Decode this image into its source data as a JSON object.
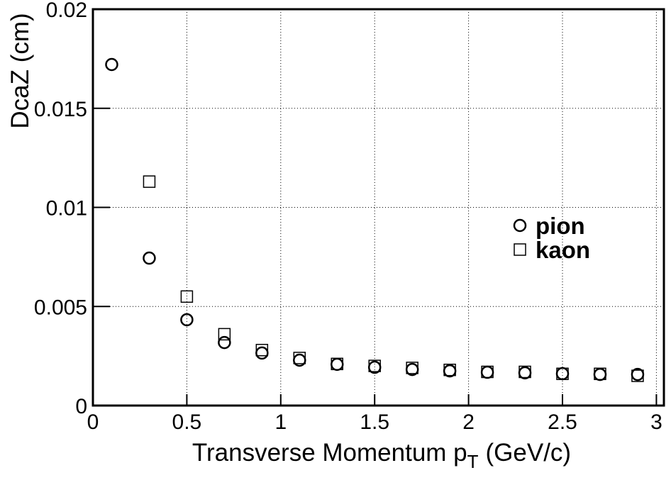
{
  "chart_data": {
    "type": "scatter",
    "x_label": {
      "text": "Transverse Momentum p",
      "subscript": "T",
      "suffix": "(GeV/c)"
    },
    "y_label": "DcaZ (cm)",
    "xlim": [
      0,
      3.04
    ],
    "ylim": [
      0,
      0.02
    ],
    "xticks": [
      0,
      0.5,
      1,
      1.5,
      2,
      2.5,
      3
    ],
    "yticks": [
      0,
      0.005,
      0.01,
      0.015,
      0.02
    ],
    "grid": true,
    "legend": "right",
    "series": [
      {
        "name": "pion",
        "marker": "circle",
        "color": "#000000",
        "x": [
          0.1,
          0.3,
          0.5,
          0.7,
          0.9,
          1.1,
          1.3,
          1.5,
          1.7,
          1.9,
          2.1,
          2.3,
          2.5,
          2.7,
          2.9
        ],
        "values": [
          0.01721,
          0.00744,
          0.00433,
          0.00318,
          0.00265,
          0.00229,
          0.00208,
          0.00193,
          0.00182,
          0.00175,
          0.00168,
          0.00165,
          0.00161,
          0.00157,
          0.00157
        ]
      },
      {
        "name": "kaon",
        "marker": "square",
        "color": "#000000",
        "x": [
          0.3,
          0.5,
          0.7,
          0.9,
          1.1,
          1.3,
          1.5,
          1.7,
          1.9,
          2.1,
          2.3,
          2.5,
          2.7,
          2.9
        ],
        "values": [
          0.0113,
          0.0055,
          0.0036,
          0.0028,
          0.0024,
          0.0021,
          0.002,
          0.0019,
          0.0018,
          0.0017,
          0.0017,
          0.0016,
          0.0016,
          0.0015
        ]
      }
    ]
  }
}
